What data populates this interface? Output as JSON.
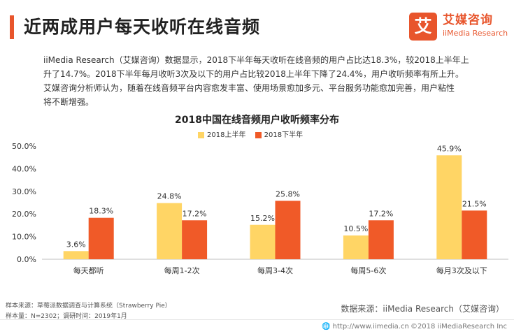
{
  "header": {
    "title": "近两成用户每天收听在线音频",
    "logo_icon": "艾",
    "logo_cn": "艾媒咨询",
    "logo_en": "iiMedia Research"
  },
  "description": {
    "line1": "iiMedia Research（艾媒咨询）数据显示，2018下半年每天收听在线音频的用户占比达18.3%，较2018上半年上",
    "line2": "升了14.7%。2018下半年每月收听3次及以下的用户占比较2018上半年下降了24.4%，用户收听频率有所上升。",
    "line3": "艾媒咨询分析师认为，随着在线音频平台内容愈发丰富、使用场景愈加多元、平台服务功能愈加完善，用户粘性",
    "line4": "将不断增强。"
  },
  "chart_data": {
    "type": "bar",
    "title": "2018中国在线音频用户收听频率分布",
    "categories": [
      "每天都听",
      "每周1-2次",
      "每周3-4次",
      "每周5-6次",
      "每月3次及以下"
    ],
    "series": [
      {
        "name": "2018上半年",
        "color": "#ffd565",
        "values": [
          3.6,
          24.8,
          15.2,
          10.5,
          45.9
        ]
      },
      {
        "name": "2018下半年",
        "color": "#f05a28",
        "values": [
          18.3,
          17.2,
          25.8,
          17.2,
          21.5
        ]
      }
    ],
    "y_ticks": [
      "0.0%",
      "10.0%",
      "20.0%",
      "30.0%",
      "40.0%",
      "50.0%"
    ],
    "ylim": [
      0,
      50
    ],
    "value_suffix": "%",
    "grid": false,
    "legend_position": "top"
  },
  "footer": {
    "sample_source": "样本来源：草莓派数据调查与计算系统（Strawberry Pie）",
    "sample_size": "样本量：N=2302；调研时间：2019年1月",
    "data_source": "数据来源：iiMedia Research（艾媒咨询）",
    "url": "http://www.iimedia.cn",
    "copyright": "©2018  iiMediaResearch Inc"
  },
  "colors": {
    "accent": "#e8552c",
    "series1": "#ffd565",
    "series2": "#f05a28"
  },
  "icons": {
    "logo": "iimedia-logo-icon",
    "url": "globe-icon"
  }
}
